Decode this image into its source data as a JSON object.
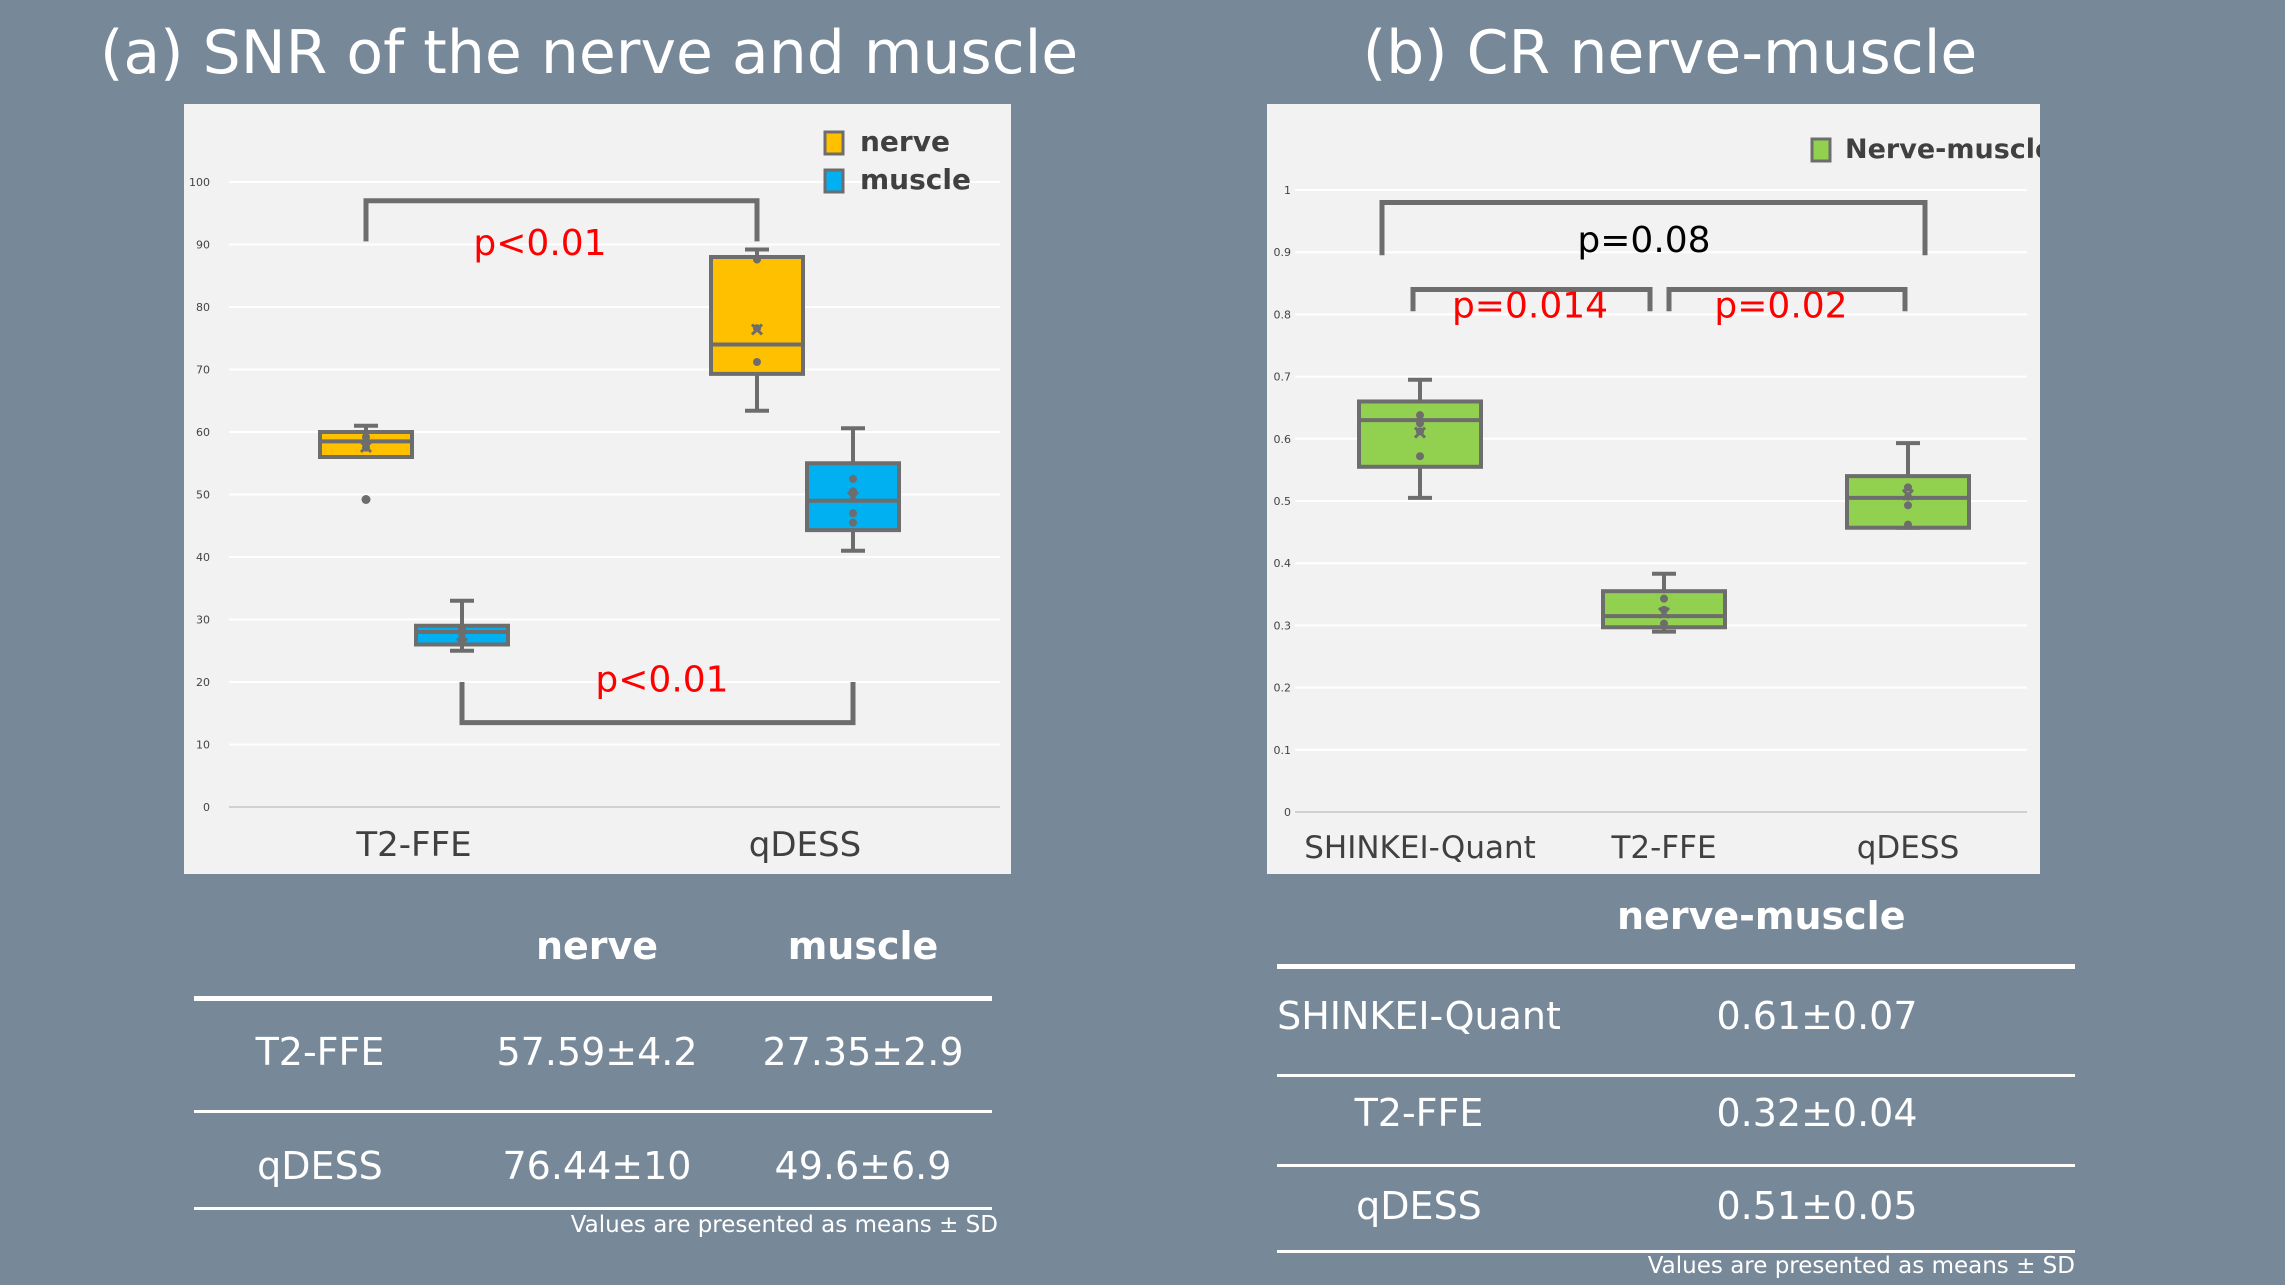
{
  "titles": {
    "a": "(a) SNR of the nerve and muscle",
    "b": "(b) CR nerve-muscle"
  },
  "colors": {
    "background": "#778899",
    "panel": "#f2f2f2",
    "nerve": "#ffc000",
    "muscle": "#00b0f0",
    "nerve_muscle": "#92d050",
    "box_stroke": "#6d6d6d",
    "pvalue_red": "#ff0000",
    "pvalue_black": "#000000"
  },
  "chart_data": [
    {
      "type": "box",
      "title": "(a) SNR of the nerve and muscle",
      "categories": [
        "T2-FFE",
        "qDESS"
      ],
      "y_ticks": [
        "0",
        "10",
        "20",
        "30",
        "40",
        "50",
        "60",
        "70",
        "80",
        "90",
        "100"
      ],
      "ylim": [
        0,
        100
      ],
      "grid": true,
      "legend_position": "top-right",
      "series": [
        {
          "name": "nerve",
          "color": "#ffc000",
          "boxes": [
            {
              "category": "T2-FFE",
              "min": 56,
              "q1": 56,
              "median": 58.5,
              "q3": 60,
              "max": 61,
              "mean": 57.6,
              "outliers": [
                49.2
              ],
              "points": [
                57.5,
                58.5,
                59.2
              ]
            },
            {
              "category": "qDESS",
              "min": 63.4,
              "q1": 69.3,
              "median": 74,
              "q3": 88,
              "max": 89.2,
              "mean": 76.4,
              "outliers": [],
              "points": [
                71.2,
                76.6,
                87.6
              ]
            }
          ]
        },
        {
          "name": "muscle",
          "color": "#00b0f0",
          "boxes": [
            {
              "category": "T2-FFE",
              "min": 25,
              "q1": 26,
              "median": 28,
              "q3": 29,
              "max": 33,
              "mean": 27.4,
              "outliers": [],
              "points": [
                26.4,
                27.8,
                28.6
              ]
            },
            {
              "category": "qDESS",
              "min": 41,
              "q1": 44.3,
              "median": 49,
              "q3": 55,
              "max": 60.6,
              "mean": 49.6,
              "outliers": [],
              "points": [
                45.5,
                47,
                50.5,
                52.5
              ]
            }
          ]
        }
      ],
      "annotations": [
        {
          "text": "p<0.01",
          "between": [
            "T2-FFE nerve",
            "qDESS nerve"
          ]
        },
        {
          "text": "p<0.01",
          "between": [
            "T2-FFE muscle",
            "qDESS muscle"
          ]
        }
      ]
    },
    {
      "type": "box",
      "title": "(b) CR nerve-muscle",
      "categories": [
        "SHINKEI-Quant",
        "T2-FFE",
        "qDESS"
      ],
      "y_ticks": [
        "0",
        "0.1",
        "0.2",
        "0.3",
        "0.4",
        "0.5",
        "0.6",
        "0.7",
        "0.8",
        "0.9",
        "1"
      ],
      "ylim": [
        0,
        1
      ],
      "grid": true,
      "legend_position": "top-right",
      "series": [
        {
          "name": "Nerve-muscle",
          "color": "#92d050",
          "boxes": [
            {
              "category": "SHINKEI-Quant",
              "min": 0.505,
              "q1": 0.555,
              "median": 0.63,
              "q3": 0.66,
              "max": 0.695,
              "mean": 0.61,
              "outliers": [],
              "points": [
                0.572,
                0.612,
                0.625,
                0.638
              ]
            },
            {
              "category": "T2-FFE",
              "min": 0.29,
              "q1": 0.297,
              "median": 0.315,
              "q3": 0.355,
              "max": 0.383,
              "mean": 0.32,
              "outliers": [],
              "points": [
                0.303,
                0.325,
                0.343
              ]
            },
            {
              "category": "qDESS",
              "min": 0.457,
              "q1": 0.457,
              "median": 0.505,
              "q3": 0.54,
              "max": 0.593,
              "mean": 0.51,
              "outliers": [],
              "points": [
                0.462,
                0.493,
                0.507,
                0.522
              ]
            }
          ]
        }
      ],
      "annotations": [
        {
          "text": "p=0.08",
          "between": [
            "SHINKEI-Quant",
            "qDESS"
          ]
        },
        {
          "text": "p=0.014",
          "between": [
            "SHINKEI-Quant",
            "T2-FFE"
          ]
        },
        {
          "text": "p=0.02",
          "between": [
            "T2-FFE",
            "qDESS"
          ]
        }
      ]
    }
  ],
  "table_a": {
    "headers": [
      "",
      "nerve",
      "muscle"
    ],
    "rows": [
      [
        "T2-FFE",
        "57.59±4.2",
        "27.35±2.9"
      ],
      [
        "qDESS",
        "76.44±10",
        "49.6±6.9"
      ]
    ],
    "note": "Values are presented as means ± SD"
  },
  "table_b": {
    "headers": [
      "",
      "nerve-muscle"
    ],
    "rows": [
      [
        "SHINKEI-Quant",
        "0.61±0.07"
      ],
      [
        "T2-FFE",
        "0.32±0.04"
      ],
      [
        "qDESS",
        "0.51±0.05"
      ]
    ],
    "note": "Values are presented as means ± SD"
  }
}
